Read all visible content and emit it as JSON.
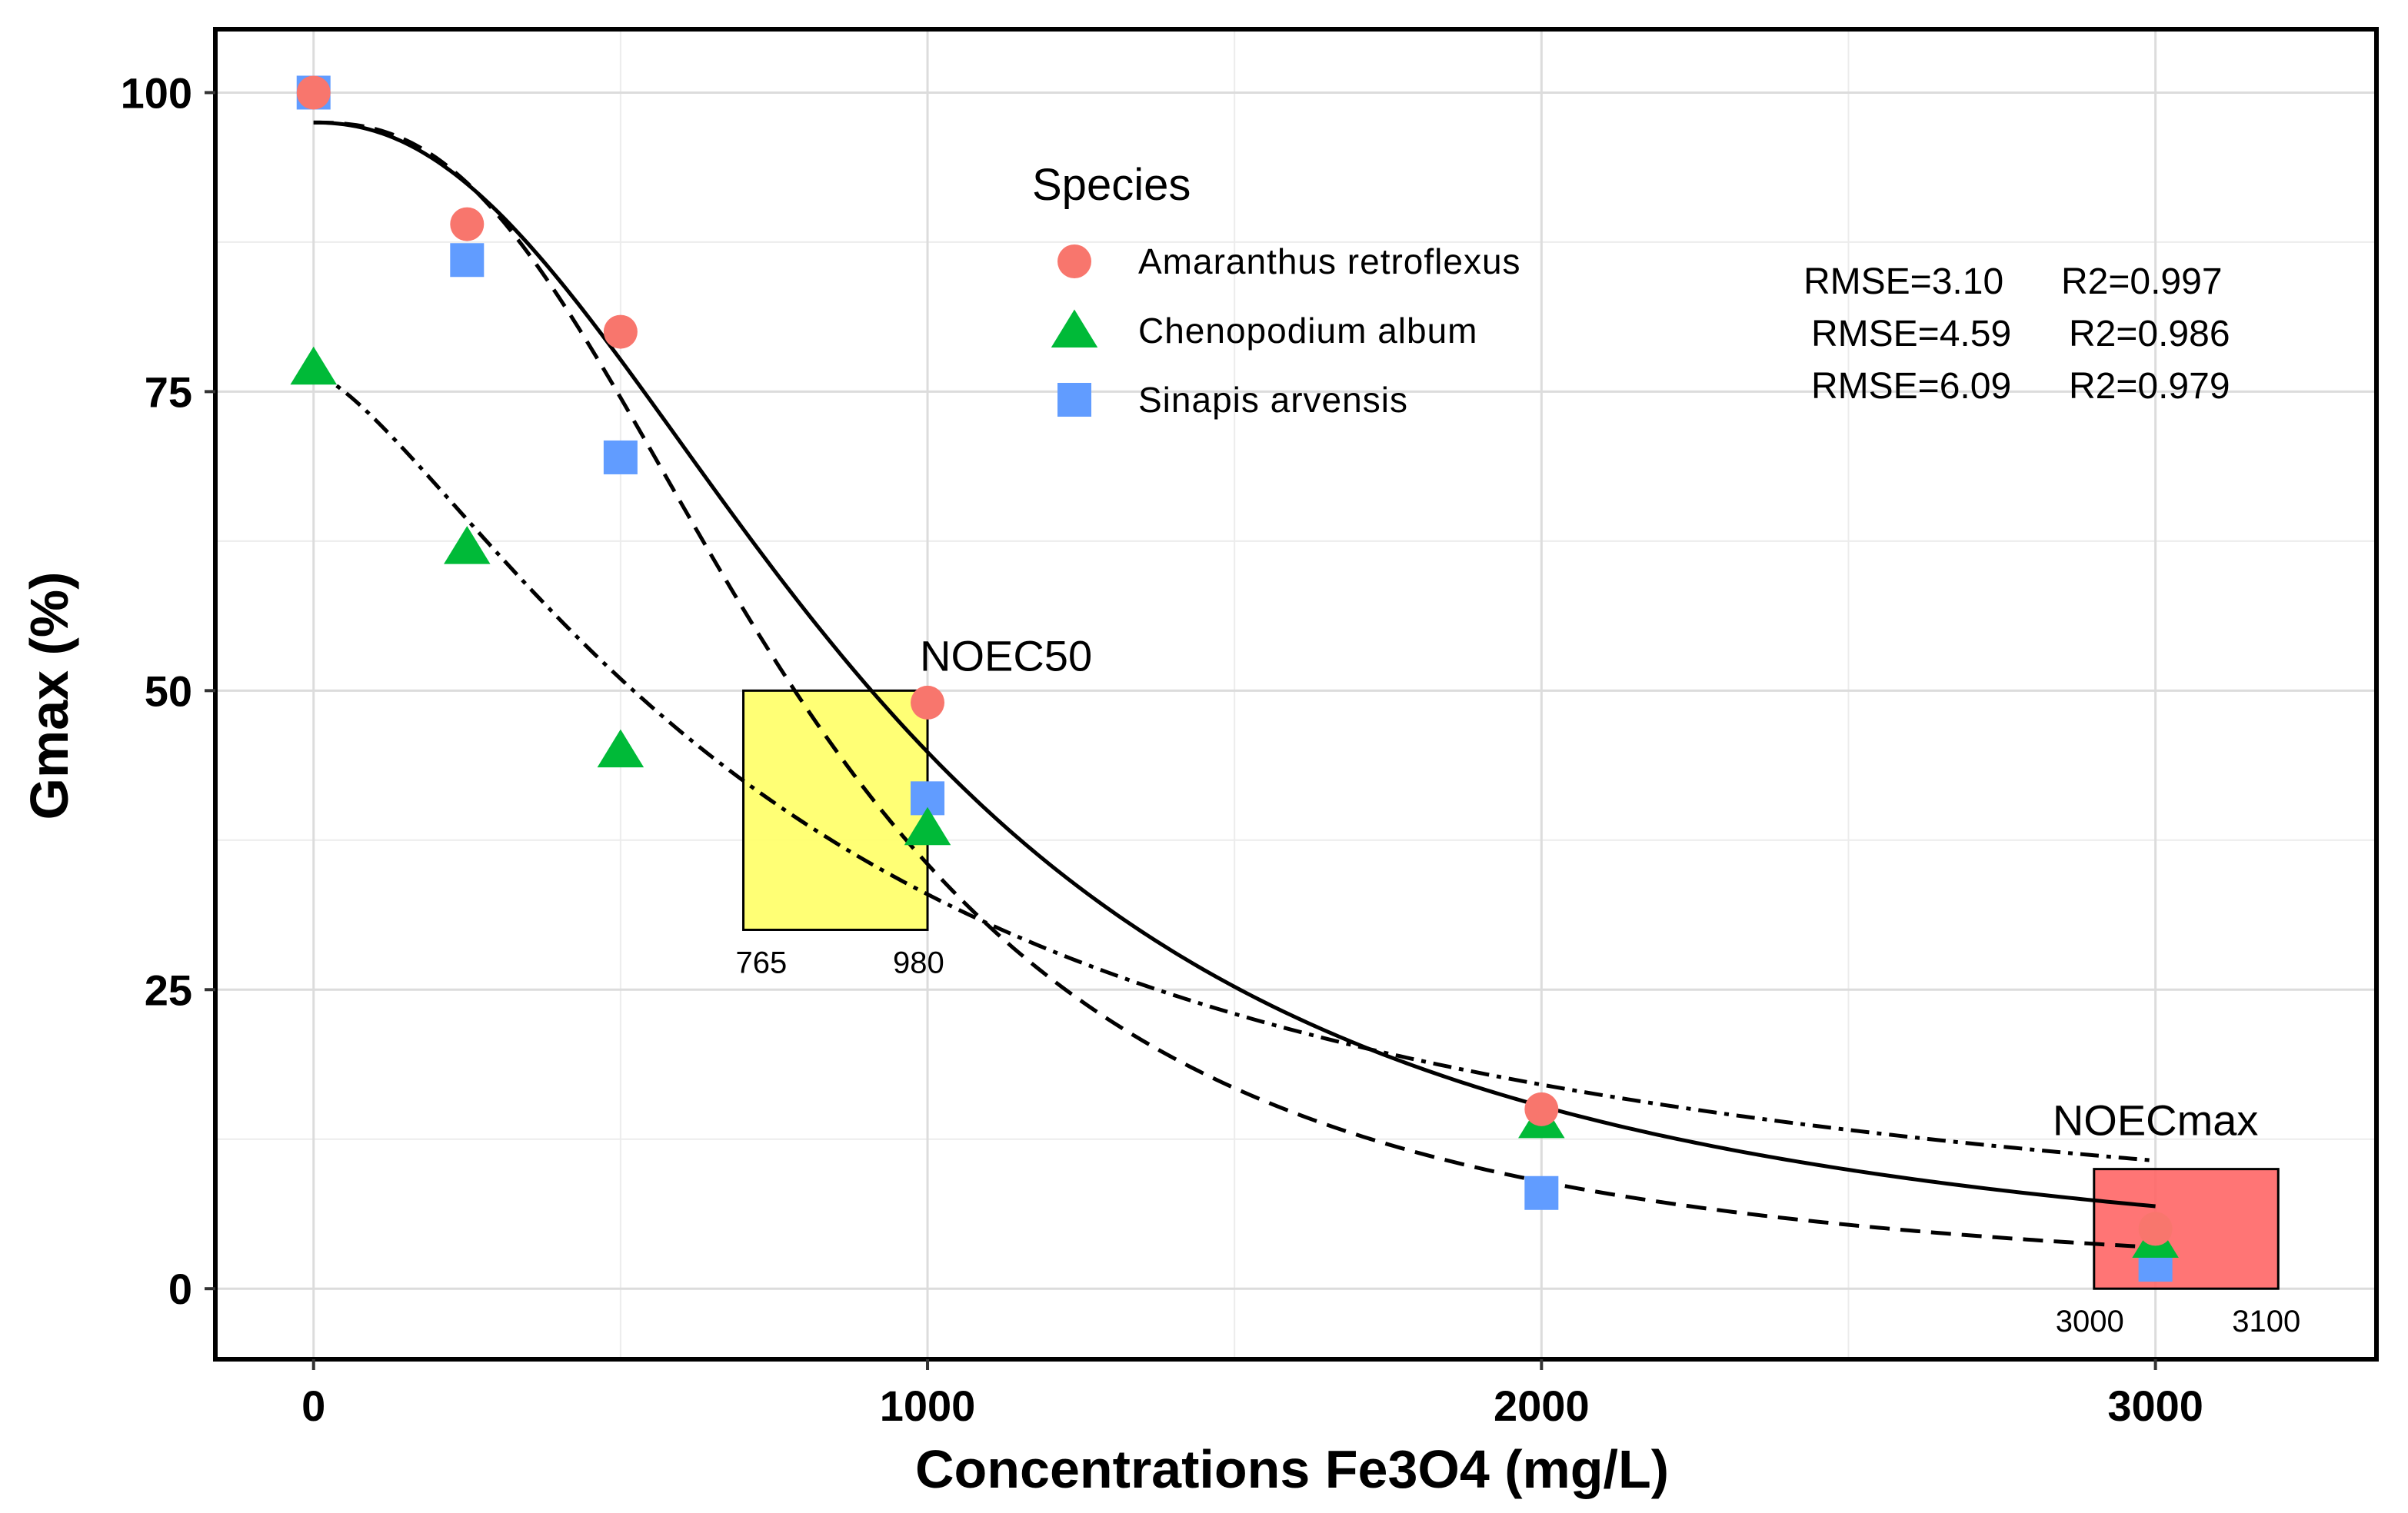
{
  "chart_data": {
    "type": "scatter",
    "xlabel": "Concentrations Fe3O4 (mg/L)",
    "ylabel": "Gmax (%)",
    "xlim": [
      -160,
      3360
    ],
    "ylim": [
      -5.9,
      105.3
    ],
    "x_ticks": [
      0,
      1000,
      2000,
      3000
    ],
    "x_tick_labels": [
      "0",
      "1000",
      "2000",
      "3000"
    ],
    "y_ticks": [
      0,
      25,
      50,
      75,
      100
    ],
    "y_tick_labels": [
      "0",
      "25",
      "50",
      "75",
      "100"
    ],
    "grid": true,
    "legend": {
      "title": "Species",
      "position": "top-center",
      "entries": [
        {
          "name": "Amaranthus retroflexus",
          "marker": "circle",
          "color": "#F8766D"
        },
        {
          "name": "Chenopodium album",
          "marker": "triangle",
          "color": "#00BA38"
        },
        {
          "name": "Sinapis arvensis",
          "marker": "square",
          "color": "#619CFF"
        }
      ]
    },
    "series": [
      {
        "name": "Amaranthus retroflexus",
        "marker": "circle",
        "color": "#F8766D",
        "points": [
          [
            0,
            100
          ],
          [
            250,
            89
          ],
          [
            500,
            80
          ],
          [
            1000,
            49
          ],
          [
            2000,
            15
          ],
          [
            3000,
            5
          ]
        ]
      },
      {
        "name": "Chenopodium album",
        "marker": "triangle",
        "color": "#00BA38",
        "points": [
          [
            0,
            77
          ],
          [
            250,
            62
          ],
          [
            500,
            45
          ],
          [
            1000,
            38.5
          ],
          [
            2000,
            14
          ],
          [
            3000,
            4
          ]
        ]
      },
      {
        "name": "Sinapis arvensis",
        "marker": "square",
        "color": "#619CFF",
        "points": [
          [
            0,
            100
          ],
          [
            250,
            86
          ],
          [
            500,
            69.5
          ],
          [
            1000,
            41
          ],
          [
            2000,
            8
          ],
          [
            3000,
            2
          ]
        ]
      }
    ],
    "fits": [
      {
        "name": "Amaranthus retroflexus fit",
        "style": "solid",
        "upper": 97.5,
        "ec50": 930,
        "slope": 2.2,
        "x_range": [
          0,
          3000
        ]
      },
      {
        "name": "Sinapis arvensis fit",
        "style": "dashed",
        "upper": 97.5,
        "ec50": 800,
        "slope": 2.5,
        "x_range": [
          0,
          3000
        ]
      },
      {
        "name": "Chenopodium album fit",
        "style": "dotdash",
        "upper": 76.5,
        "ec50": 820,
        "slope": 1.4,
        "x_range": [
          0,
          3000
        ]
      }
    ],
    "stats": [
      {
        "rmse": "RMSE=3.10",
        "r2": "R2=0.997"
      },
      {
        "rmse": "RMSE=4.59",
        "r2": "R2=0.986"
      },
      {
        "rmse": "RMSE=6.09",
        "r2": "R2=0.979"
      }
    ],
    "regions": [
      {
        "name": "NOEC50",
        "label": "NOEC50",
        "x_range": [
          700,
          1000
        ],
        "y_range": [
          30,
          50
        ],
        "fill": "#FFFF66",
        "low_label": "765",
        "high_label": "980"
      },
      {
        "name": "NOECmax",
        "label": "NOECmax",
        "x_range": [
          2900,
          3200
        ],
        "y_range": [
          0,
          10
        ],
        "fill": "#FF6666",
        "low_label": "3000",
        "high_label": "3100"
      }
    ]
  }
}
